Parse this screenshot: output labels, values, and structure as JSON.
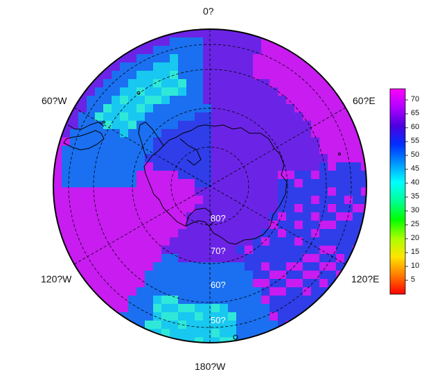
{
  "map": {
    "longitude_labels": [
      "0?",
      "60?E",
      "120?E",
      "180?W",
      "120?W",
      "60?W"
    ],
    "latitude_labels": [
      "80?",
      "70?",
      "60?",
      "50?"
    ],
    "colorbar": {
      "ticks": [
        "70",
        "65",
        "60",
        "55",
        "50",
        "45",
        "40",
        "35",
        "30",
        "25",
        "20",
        "15",
        "10",
        "5"
      ],
      "colors": [
        "#ff0000",
        "#ff7a00",
        "#ffe400",
        "#a8ff00",
        "#00ff00",
        "#00ff96",
        "#00ffff",
        "#0096ff",
        "#0030ff",
        "#4a00e0",
        "#b000ff",
        "#ff00ff"
      ]
    },
    "palette": {
      "magenta": "#c81cf0",
      "purple": "#6b24e6",
      "blue": "#2f3ee8",
      "mid_blue": "#1a70f0",
      "cyan": "#18c8f0",
      "aqua": "#30e8d8",
      "coast": "#000000",
      "grid": "#000000"
    }
  }
}
